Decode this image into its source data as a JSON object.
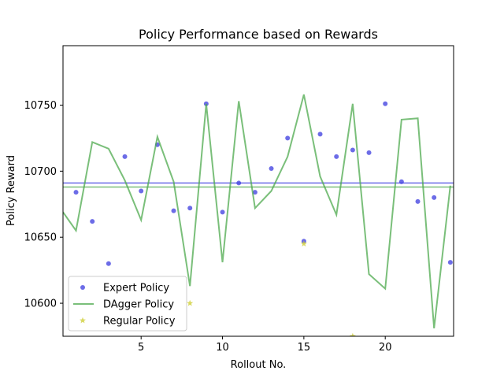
{
  "chart_data": {
    "type": "line",
    "title": "Policy Performance based on Rewards",
    "xlabel": "Rollout No.",
    "ylabel": "Policy Reward",
    "xlim": [
      0.2,
      24.2
    ],
    "ylim": [
      10575,
      10795
    ],
    "xticks": [
      5,
      10,
      15,
      20
    ],
    "yticks": [
      10600,
      10650,
      10700,
      10750
    ],
    "grid": false,
    "legend_position": "lower-left",
    "series": [
      {
        "name": "Expert Policy",
        "kind": "scatter",
        "marker": "circle",
        "color": "#3b3bdf",
        "x": [
          1,
          2,
          3,
          4,
          5,
          6,
          7,
          8,
          9,
          10,
          11,
          12,
          13,
          14,
          15,
          16,
          17,
          18,
          19,
          20,
          21,
          22,
          23,
          24
        ],
        "y": [
          10684,
          10662,
          10630,
          10711,
          10685,
          10720,
          10670,
          10672,
          10751,
          10669,
          10691,
          10684,
          10702,
          10725,
          10647,
          10728,
          10711,
          10716,
          10714,
          10751,
          10692,
          10677,
          10680,
          10631
        ]
      },
      {
        "name": "DAgger Policy",
        "kind": "line",
        "color": "#4daa4d",
        "x": [
          0.2,
          1,
          2,
          3,
          4,
          5,
          6,
          7,
          8,
          9,
          10,
          11,
          12,
          13,
          14,
          15,
          16,
          17,
          18,
          19,
          20,
          21,
          22,
          23,
          24
        ],
        "y": [
          10669,
          10655,
          10722,
          10717,
          10693,
          10663,
          10726,
          10692,
          10613,
          10751,
          10631,
          10753,
          10672,
          10685,
          10711,
          10758,
          10696,
          10667,
          10751,
          10622,
          10611,
          10739,
          10740,
          10581,
          10689
        ]
      },
      {
        "name": "Regular Policy",
        "kind": "scatter",
        "marker": "star",
        "color": "#cfcf3a",
        "x": [
          8,
          15,
          18
        ],
        "y": [
          10600,
          10645,
          10575
        ]
      }
    ],
    "hlines": [
      {
        "y": 10691,
        "color": "#3b3bdf"
      },
      {
        "y": 10688,
        "color": "#4daa4d"
      }
    ]
  }
}
